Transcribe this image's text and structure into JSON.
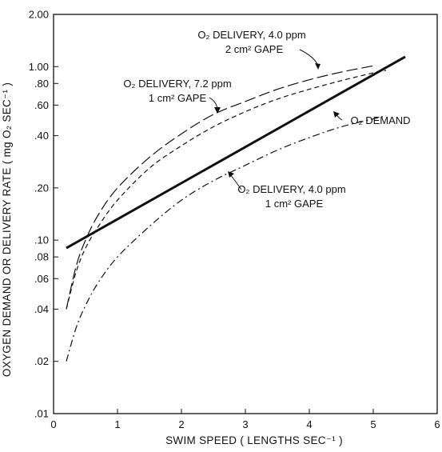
{
  "chart_data": {
    "type": "line",
    "xlabel": "SWIM SPEED ( LENGTHS SEC⁻¹ )",
    "ylabel": "OXYGEN DEMAND OR DELIVERY RATE ( mg O₂ SEC⁻¹ )",
    "xlim": [
      0,
      6
    ],
    "ylim": [
      0.01,
      2.0
    ],
    "yscale": "log",
    "grid": false,
    "x_ticks": [
      {
        "value": 0,
        "label": "0"
      },
      {
        "value": 1,
        "label": "1"
      },
      {
        "value": 2,
        "label": "2"
      },
      {
        "value": 3,
        "label": "3"
      },
      {
        "value": 4,
        "label": "4"
      },
      {
        "value": 5,
        "label": "5"
      },
      {
        "value": 6,
        "label": "6"
      }
    ],
    "y_ticks": [
      {
        "value": 2.0,
        "label": "2.00"
      },
      {
        "value": 1.0,
        "label": "1.00"
      },
      {
        "value": 0.8,
        "label": ".80"
      },
      {
        "value": 0.6,
        "label": ".60"
      },
      {
        "value": 0.4,
        "label": ".40"
      },
      {
        "value": 0.2,
        "label": ".20"
      },
      {
        "value": 0.1,
        "label": ".10"
      },
      {
        "value": 0.08,
        "label": ".08"
      },
      {
        "value": 0.06,
        "label": ".06"
      },
      {
        "value": 0.04,
        "label": ".04"
      },
      {
        "value": 0.02,
        "label": ".02"
      },
      {
        "value": 0.01,
        "label": ".01"
      }
    ],
    "series": [
      {
        "name": "O₂ DEMAND",
        "style": "solid-thick",
        "x": [
          0.2,
          5.5
        ],
        "values": [
          0.09,
          1.14
        ]
      },
      {
        "name": "O₂ DELIVERY, 4.0 ppm 2 cm² GAPE",
        "style": "long-dash",
        "x": [
          0.2,
          0.35,
          0.5,
          0.7,
          1.0,
          1.5,
          2.0,
          2.5,
          3.0,
          3.5,
          4.0,
          4.5,
          5.0
        ],
        "values": [
          0.04,
          0.07,
          0.1,
          0.14,
          0.2,
          0.3,
          0.41,
          0.53,
          0.63,
          0.74,
          0.84,
          0.93,
          1.01
        ]
      },
      {
        "name": "O₂ DELIVERY, 7.2 ppm 1 cm² GAPE",
        "style": "dash",
        "x": [
          0.2,
          0.35,
          0.5,
          0.7,
          1.0,
          1.5,
          2.0,
          2.5,
          3.0,
          3.5,
          4.0,
          4.5,
          5.0,
          5.2
        ],
        "values": [
          0.04,
          0.065,
          0.09,
          0.12,
          0.17,
          0.26,
          0.35,
          0.45,
          0.55,
          0.65,
          0.74,
          0.83,
          0.92,
          0.95
        ]
      },
      {
        "name": "O₂ DELIVERY, 4.0 ppm 1 cm² GAPE",
        "style": "dash-dot",
        "x": [
          0.2,
          0.35,
          0.5,
          0.7,
          1.0,
          1.5,
          2.0,
          2.5,
          3.0,
          3.5,
          4.0,
          4.5,
          5.0,
          5.2
        ],
        "values": [
          0.02,
          0.031,
          0.042,
          0.057,
          0.08,
          0.12,
          0.17,
          0.22,
          0.27,
          0.33,
          0.39,
          0.45,
          0.5,
          0.52
        ]
      }
    ],
    "annotations": [
      {
        "line1": "O₂ DELIVERY, 4.0 ppm",
        "line2": "2 cm² GAPE"
      },
      {
        "line1": "O₂ DELIVERY, 7.2 ppm",
        "line2": "1 cm² GAPE"
      },
      {
        "line1": "O₂ DEMAND",
        "line2": ""
      },
      {
        "line1": "O₂ DELIVERY, 4.0 ppm",
        "line2": "1 cm² GAPE"
      }
    ]
  }
}
